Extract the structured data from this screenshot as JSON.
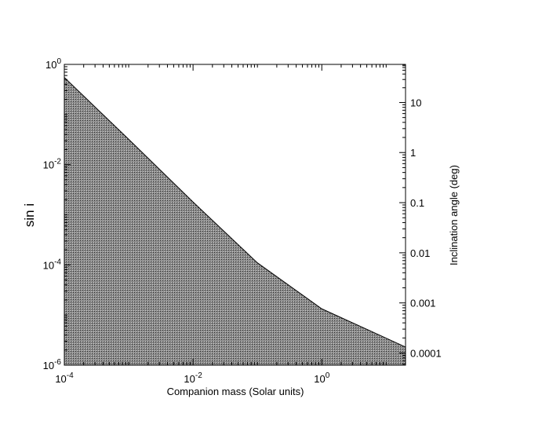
{
  "chart_data": {
    "type": "area",
    "xlabel": "Companion mass (Solar units)",
    "ylabel": "sin i",
    "y2label": "Inclination angle (deg)",
    "xscale": "log",
    "yscale": "log",
    "xlim": [
      0.0001,
      20
    ],
    "ylim": [
      1e-06,
      1
    ],
    "grid": false,
    "fill": "hatched-gray",
    "x_ticks": [
      {
        "value": 0.0001,
        "base": "10",
        "exp": "-4"
      },
      {
        "value": 0.01,
        "base": "10",
        "exp": "-2"
      },
      {
        "value": 1,
        "base": "10",
        "exp": "0"
      }
    ],
    "y_ticks": [
      {
        "value": 1,
        "base": "10",
        "exp": "0"
      },
      {
        "value": 0.01,
        "base": "10",
        "exp": "-2"
      },
      {
        "value": 0.0001,
        "base": "10",
        "exp": "-4"
      },
      {
        "value": 1e-06,
        "base": "10",
        "exp": "-6"
      }
    ],
    "y2_ticks": [
      {
        "value": 10,
        "label": "10"
      },
      {
        "value": 1,
        "label": "1"
      },
      {
        "value": 0.1,
        "label": "0.1"
      },
      {
        "value": 0.01,
        "label": "0.01"
      },
      {
        "value": 0.001,
        "label": "0.001"
      },
      {
        "value": 0.0001,
        "label": "0.0001"
      }
    ],
    "series": [
      {
        "x": [
          0.0001,
          0.001,
          0.01,
          0.1,
          1,
          5,
          20
        ],
        "values": [
          0.55,
          0.032,
          0.0018,
          0.00011,
          1.33e-05,
          5.2e-06,
          2.3e-06
        ]
      }
    ]
  }
}
